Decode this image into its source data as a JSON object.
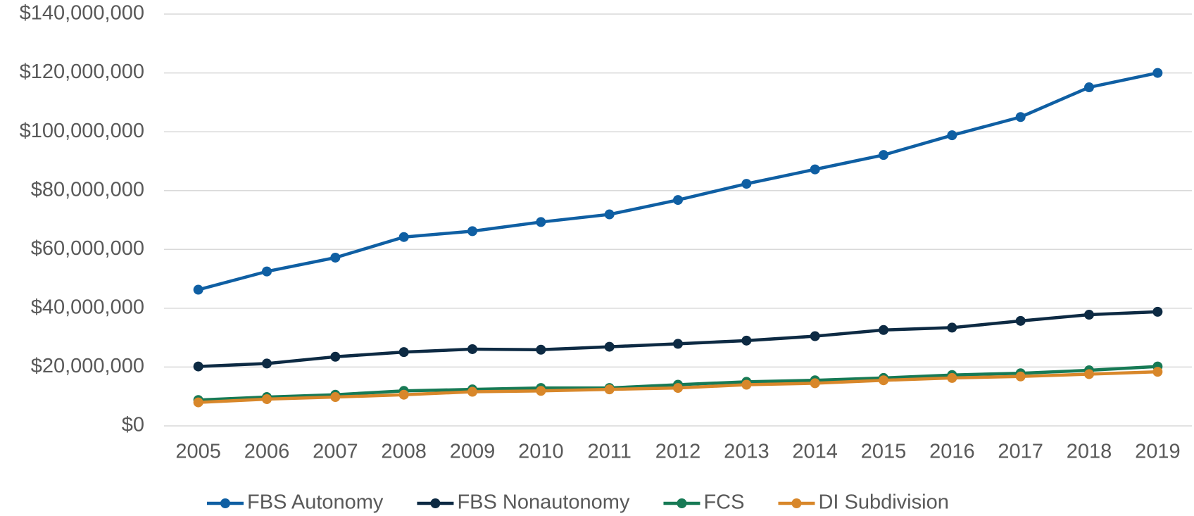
{
  "chart_data": {
    "type": "line",
    "categories": [
      "2005",
      "2006",
      "2007",
      "2008",
      "2009",
      "2010",
      "2011",
      "2012",
      "2013",
      "2014",
      "2015",
      "2016",
      "2017",
      "2018",
      "2019"
    ],
    "series": [
      {
        "name": "FBS Autonomy",
        "color": "#0f5fa3",
        "values": [
          46300000,
          52500000,
          57200000,
          64200000,
          66200000,
          69300000,
          71900000,
          76800000,
          82300000,
          87200000,
          92100000,
          98800000,
          105000000,
          115100000,
          120000000
        ]
      },
      {
        "name": "FBS Nonautonomy",
        "color": "#0d2a43",
        "values": [
          20200000,
          21200000,
          23500000,
          25100000,
          26100000,
          25900000,
          26900000,
          27900000,
          29000000,
          30500000,
          32600000,
          33400000,
          35700000,
          37800000,
          38800000
        ]
      },
      {
        "name": "FCS",
        "color": "#177a55",
        "values": [
          8800000,
          9800000,
          10600000,
          11900000,
          12400000,
          12900000,
          12900000,
          14000000,
          15000000,
          15500000,
          16300000,
          17300000,
          17900000,
          18900000,
          20200000
        ]
      },
      {
        "name": "DI Subdivision",
        "color": "#d8872a",
        "values": [
          8000000,
          9100000,
          9800000,
          10600000,
          11600000,
          11900000,
          12400000,
          12900000,
          14000000,
          14500000,
          15500000,
          16300000,
          16800000,
          17600000,
          18400000
        ]
      }
    ],
    "ylim": [
      0,
      140000000
    ],
    "yticks": [
      {
        "value": 0,
        "label": "$0"
      },
      {
        "value": 20000000,
        "label": "$20,000,000"
      },
      {
        "value": 40000000,
        "label": "$40,000,000"
      },
      {
        "value": 60000000,
        "label": "$60,000,000"
      },
      {
        "value": 80000000,
        "label": "$80,000,000"
      },
      {
        "value": 100000000,
        "label": "$100,000,000"
      },
      {
        "value": 120000000,
        "label": "$120,000,000"
      },
      {
        "value": 140000000,
        "label": "$140,000,000"
      }
    ],
    "grid": true,
    "legend": "bottom"
  }
}
